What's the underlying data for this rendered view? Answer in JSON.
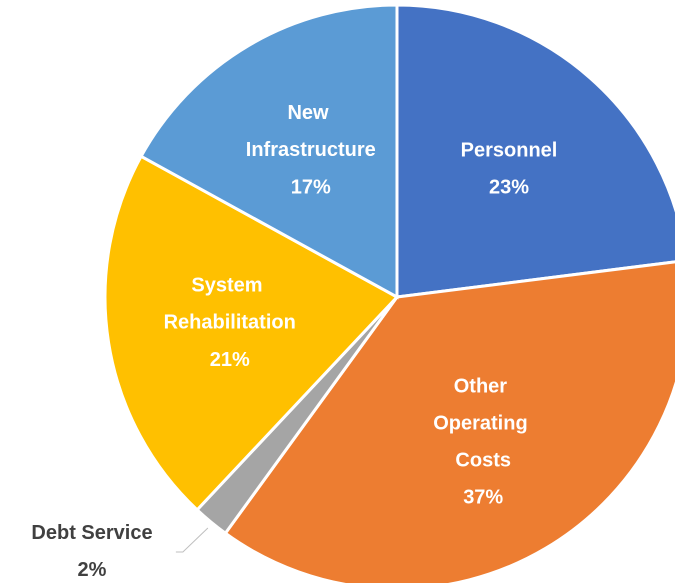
{
  "chart_data": {
    "type": "pie",
    "categories": [
      "Personnel",
      "Other Operating Costs",
      "Debt Service",
      "System Rehabilitation",
      "New Infrastructure"
    ],
    "values": [
      23,
      37,
      2,
      21,
      17
    ],
    "value_labels": [
      "23%",
      "37%",
      "2%",
      "21%",
      "17%"
    ],
    "colors": [
      "#4472c4",
      "#ed7d31",
      "#a5a5a5",
      "#ffc000",
      "#5b9bd5"
    ]
  }
}
